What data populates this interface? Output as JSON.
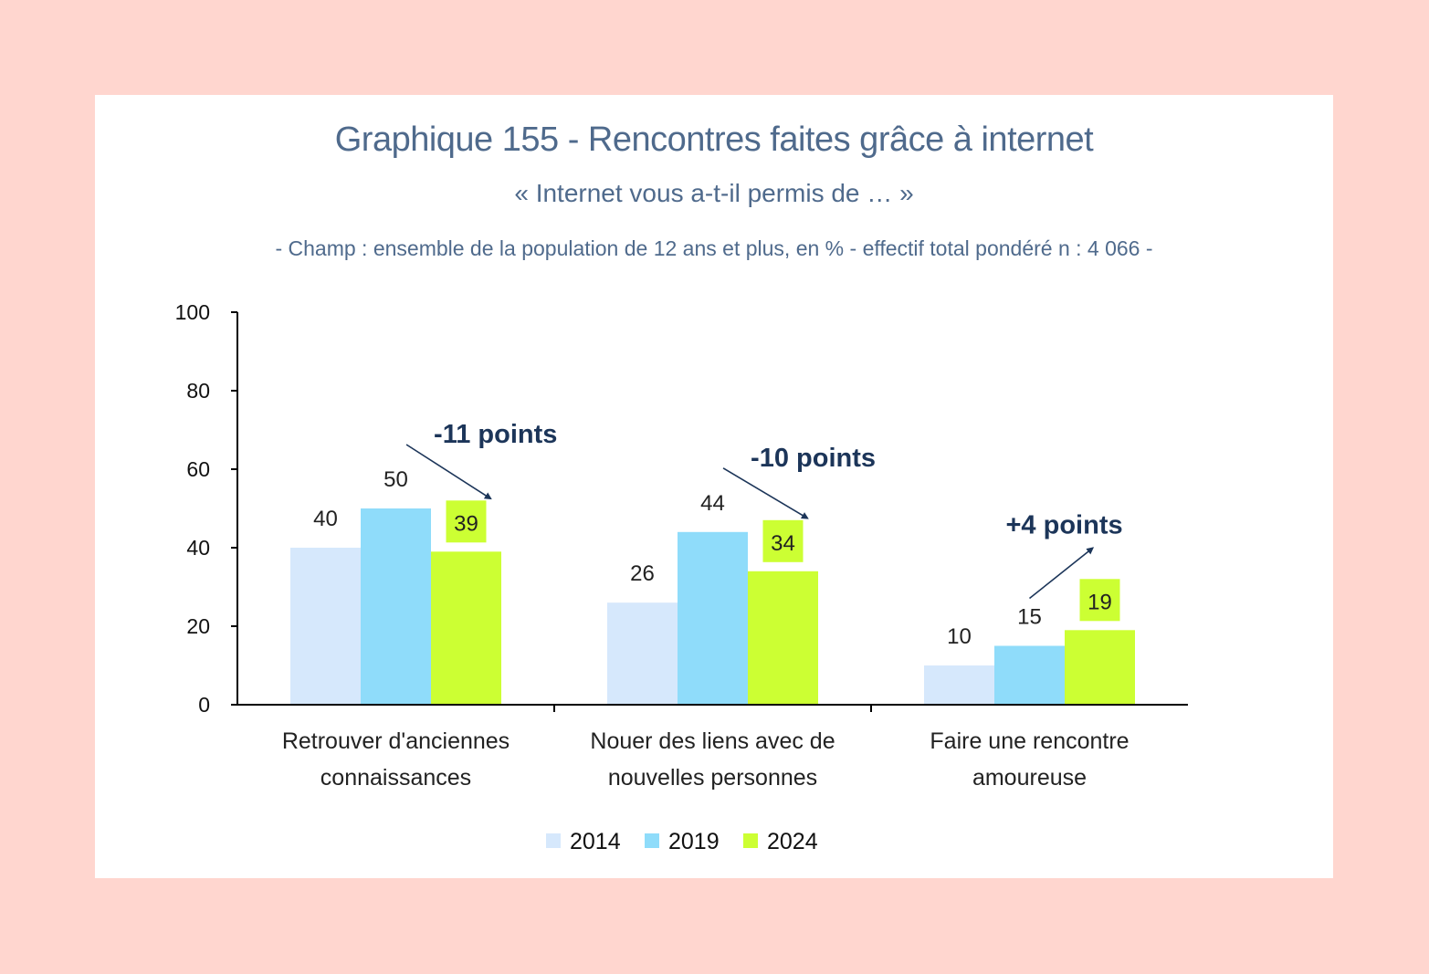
{
  "header": {
    "title": "Graphique 155 - Rencontres faites grâce à internet",
    "subtitle": "« Internet vous a-t-il permis de … »",
    "champ": "- Champ : ensemble de la population de 12 ans et plus, en % - effectif total pondéré n : 4 066 -"
  },
  "colors": {
    "2014": "#d6e8fc",
    "2019": "#8fdcfa",
    "2024": "#ccff33",
    "axis": "#000000",
    "annotation": "#1c3559",
    "page_background": "#ffd6cf"
  },
  "chart_data": {
    "type": "bar",
    "title": "Graphique 155 - Rencontres faites grâce à internet",
    "subtitle": "« Internet vous a-t-il permis de … »",
    "xlabel": "",
    "ylabel": "",
    "ylim": [
      0,
      100
    ],
    "yticks": [
      0,
      20,
      40,
      60,
      80,
      100
    ],
    "grid": false,
    "legend_position": "bottom",
    "categories": [
      [
        "Retrouver d'anciennes",
        "connaissances"
      ],
      [
        "Nouer des liens avec de",
        "nouvelles personnes"
      ],
      [
        "Faire une rencontre",
        "amoureuse"
      ]
    ],
    "series": [
      {
        "name": "2014",
        "values": [
          40,
          26,
          10
        ]
      },
      {
        "name": "2019",
        "values": [
          50,
          44,
          15
        ]
      },
      {
        "name": "2024",
        "values": [
          39,
          34,
          19
        ]
      }
    ],
    "value_labels": [
      [
        "40",
        "26",
        "10"
      ],
      [
        "50",
        "44",
        "15"
      ],
      [
        "39",
        "34",
        "19"
      ]
    ],
    "annotations": [
      {
        "category_index": 0,
        "text": "-11 points",
        "direction": "down"
      },
      {
        "category_index": 1,
        "text": "-10 points",
        "direction": "down"
      },
      {
        "category_index": 2,
        "text": "+4 points",
        "direction": "up"
      }
    ]
  }
}
